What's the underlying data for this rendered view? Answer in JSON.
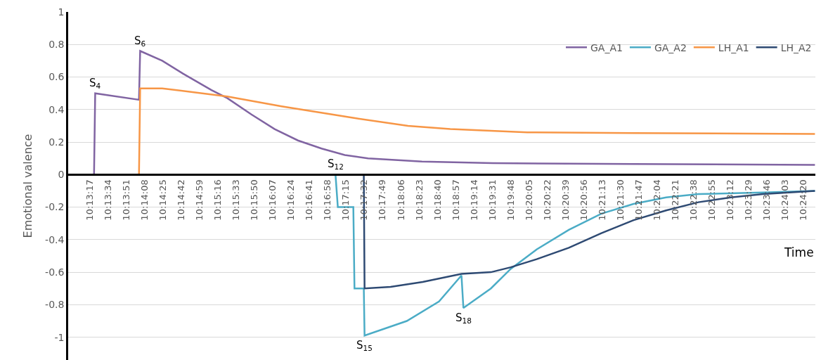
{
  "chart_data": {
    "type": "line",
    "xlabel": "Time",
    "ylabel": "Emotional valence",
    "xlim": [
      10.21583,
      10.40861
    ],
    "ylim": [
      -1.14,
      1
    ],
    "xticks": [
      {
        "value": 10.22139,
        "label": "10:13:17"
      },
      {
        "value": 10.22611,
        "label": "10:13:34"
      },
      {
        "value": 10.23083,
        "label": "10:13:51"
      },
      {
        "value": 10.23556,
        "label": "10:14:08"
      },
      {
        "value": 10.24028,
        "label": "10:14:25"
      },
      {
        "value": 10.245,
        "label": "10:14:42"
      },
      {
        "value": 10.24972,
        "label": "10:14:59"
      },
      {
        "value": 10.25444,
        "label": "10:15:16"
      },
      {
        "value": 10.25917,
        "label": "10:15:33"
      },
      {
        "value": 10.26389,
        "label": "10:15:50"
      },
      {
        "value": 10.26861,
        "label": "10:16:07"
      },
      {
        "value": 10.27333,
        "label": "10:16:24"
      },
      {
        "value": 10.27806,
        "label": "10:16:41"
      },
      {
        "value": 10.28278,
        "label": "10:16:58"
      },
      {
        "value": 10.2875,
        "label": "10:17:15"
      },
      {
        "value": 10.29222,
        "label": "10:17:32"
      },
      {
        "value": 10.29694,
        "label": "10:17:49"
      },
      {
        "value": 10.30167,
        "label": "10:18:06"
      },
      {
        "value": 10.30639,
        "label": "10:18:23"
      },
      {
        "value": 10.31111,
        "label": "10:18:40"
      },
      {
        "value": 10.31583,
        "label": "10:18:57"
      },
      {
        "value": 10.32056,
        "label": "10:19:14"
      },
      {
        "value": 10.32528,
        "label": "10:19:31"
      },
      {
        "value": 10.33,
        "label": "10:19:48"
      },
      {
        "value": 10.33472,
        "label": "10:20:05"
      },
      {
        "value": 10.33944,
        "label": "10:20:22"
      },
      {
        "value": 10.34417,
        "label": "10:20:39"
      },
      {
        "value": 10.34889,
        "label": "10:20:56"
      },
      {
        "value": 10.35361,
        "label": "10:21:13"
      },
      {
        "value": 10.35833,
        "label": "10:21:30"
      },
      {
        "value": 10.36306,
        "label": "10:21:47"
      },
      {
        "value": 10.36778,
        "label": "10:22:04"
      },
      {
        "value": 10.3725,
        "label": "10:22:21"
      },
      {
        "value": 10.37722,
        "label": "10:22:38"
      },
      {
        "value": 10.38194,
        "label": "10:22:55"
      },
      {
        "value": 10.38667,
        "label": "10:23:12"
      },
      {
        "value": 10.39139,
        "label": "10:23:29"
      },
      {
        "value": 10.39611,
        "label": "10:23:46"
      },
      {
        "value": 10.40083,
        "label": "10:24:03"
      },
      {
        "value": 10.40556,
        "label": "10:24:20"
      }
    ],
    "yticks": [
      -1,
      -0.8,
      -0.6,
      -0.4,
      -0.2,
      0,
      0.2,
      0.4,
      0.6,
      0.8,
      1
    ],
    "grid": "y",
    "legend": "top right",
    "marker": "none",
    "line_style": "solid",
    "series": [
      {
        "name": "GA_A1",
        "color": "#8064a2",
        "x": [
          10.2159,
          10.2225,
          10.2228,
          10.2341,
          10.2344,
          10.2401,
          10.2455,
          10.2528,
          10.2569,
          10.2631,
          10.2691,
          10.2751,
          10.2812,
          10.2872,
          10.2932,
          10.3071,
          10.3253,
          10.3615,
          10.4085
        ],
        "values": [
          0,
          0,
          0.5,
          0.46,
          0.76,
          0.7,
          0.62,
          0.52,
          0.47,
          0.37,
          0.28,
          0.21,
          0.16,
          0.12,
          0.1,
          0.08,
          0.07,
          0.065,
          0.06
        ]
      },
      {
        "name": "GA_A2",
        "color": "#4bacc6",
        "x": [
          10.2159,
          10.2848,
          10.2854,
          10.2894,
          10.2897,
          10.2921,
          10.2923,
          10.3032,
          10.3115,
          10.3173,
          10.3178,
          10.3249,
          10.33,
          10.3367,
          10.345,
          10.3534,
          10.3617,
          10.3701,
          10.3784,
          10.3951,
          10.4085
        ],
        "values": [
          0,
          0,
          -0.2,
          -0.2,
          -0.7,
          -0.7,
          -0.99,
          -0.9,
          -0.78,
          -0.62,
          -0.82,
          -0.7,
          -0.58,
          -0.46,
          -0.34,
          -0.24,
          -0.18,
          -0.14,
          -0.12,
          -0.11,
          -0.1
        ]
      },
      {
        "name": "LH_A1",
        "color": "#f79646",
        "x": [
          10.2159,
          10.2341,
          10.2344,
          10.2401,
          10.2569,
          10.2709,
          10.289,
          10.3035,
          10.3144,
          10.3343,
          10.3615,
          10.4085
        ],
        "values": [
          0,
          0,
          0.53,
          0.53,
          0.48,
          0.42,
          0.35,
          0.3,
          0.28,
          0.26,
          0.255,
          0.25
        ]
      },
      {
        "name": "LH_A2",
        "color": "#2e4a73",
        "x": [
          10.2159,
          10.2921,
          10.2923,
          10.299,
          10.3073,
          10.3173,
          10.3249,
          10.33,
          10.3367,
          10.345,
          10.3534,
          10.3617,
          10.3701,
          10.3784,
          10.3868,
          10.3951,
          10.4085
        ],
        "values": [
          0,
          0,
          -0.7,
          -0.69,
          -0.66,
          -0.61,
          -0.6,
          -0.57,
          -0.52,
          -0.45,
          -0.36,
          -0.28,
          -0.22,
          -0.17,
          -0.14,
          -0.12,
          -0.1
        ]
      }
    ],
    "annotations": [
      {
        "text": "S$_{4}$",
        "x": 10.2228,
        "y": 0.5
      },
      {
        "text": "S$_{6}$",
        "x": 10.2344,
        "y": 0.76
      },
      {
        "text": "S$_{12}$",
        "x": 10.2848,
        "y": 0
      },
      {
        "text": "S$_{15}$",
        "x": 10.2923,
        "y": -0.99
      },
      {
        "text": "S$_{18}$",
        "x": 10.3178,
        "y": -0.82
      }
    ]
  }
}
